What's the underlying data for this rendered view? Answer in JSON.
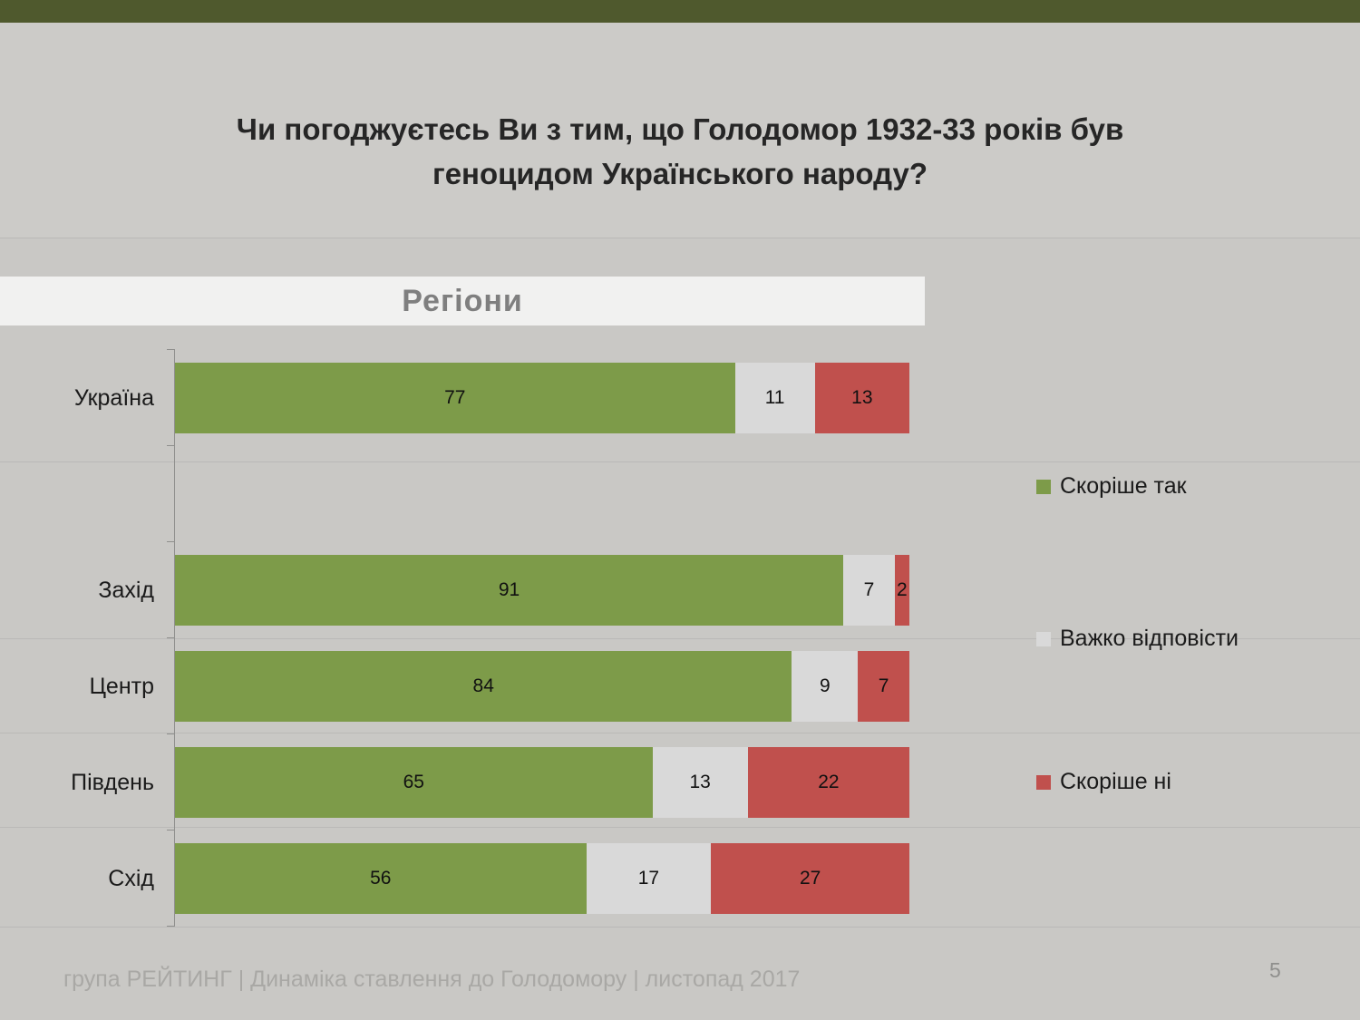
{
  "slide": {
    "title_line1": "Чи погоджуєтесь Ви з тим, що Голодомор 1932-33 років був",
    "title_line2": "геноцидом Українського народу?",
    "section_header": "Регіони",
    "footer": "група РЕЙТИНГ  |  Динаміка ставлення до Голодомору  | листопад 2017",
    "page_number": "5"
  },
  "colors": {
    "topbar": "#4f592d",
    "background": "#c9c8c5",
    "band": "#f1f1f0",
    "series_yes": "#7d9b49",
    "series_hard": "#d9d9d9",
    "series_no": "#c0504d"
  },
  "chart_data": {
    "type": "bar",
    "orientation": "horizontal",
    "stacked": true,
    "title": "Чи погоджуєтесь Ви з тим, що Голодомор 1932-33 років був геноцидом Українського народу?",
    "subtitle": "Регіони",
    "categories": [
      "Україна",
      "Захід",
      "Центр",
      "Південь",
      "Схід"
    ],
    "series": [
      {
        "name": "Скоріше так",
        "color": "#7d9b49",
        "values": [
          77,
          91,
          84,
          65,
          56
        ]
      },
      {
        "name": "Важко відповісти",
        "color": "#d9d9d9",
        "values": [
          11,
          7,
          9,
          13,
          17
        ]
      },
      {
        "name": "Скоріше ні",
        "color": "#c0504d",
        "values": [
          13,
          2,
          7,
          22,
          27
        ]
      }
    ],
    "xlim": [
      0,
      100
    ],
    "value_labels": true,
    "grid": false,
    "legend_position": "right"
  }
}
